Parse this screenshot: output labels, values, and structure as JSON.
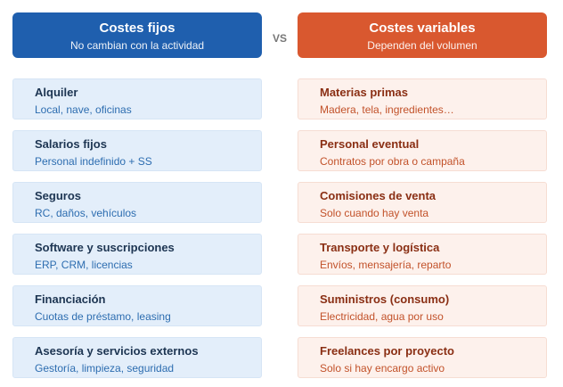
{
  "fixed": {
    "title": "Costes fijos",
    "subtitle": "No cambian con la actividad",
    "items": [
      {
        "title": "Alquiler",
        "detail": "Local, nave, oficinas"
      },
      {
        "title": "Salarios fijos",
        "detail": "Personal indefinido + SS"
      },
      {
        "title": "Seguros",
        "detail": "RC, daños, vehículos"
      },
      {
        "title": "Software y suscripciones",
        "detail": "ERP, CRM, licencias"
      },
      {
        "title": "Financiación",
        "detail": "Cuotas de préstamo, leasing"
      },
      {
        "title": "Asesoría y servicios externos",
        "detail": "Gestoría, limpieza, seguridad"
      }
    ]
  },
  "vs": "VS",
  "variable": {
    "title": "Costes variables",
    "subtitle": "Dependen del volumen",
    "items": [
      {
        "title": "Materias primas",
        "detail": "Madera, tela, ingredientes…"
      },
      {
        "title": "Personal eventual",
        "detail": "Contratos por obra o campaña"
      },
      {
        "title": "Comisiones de venta",
        "detail": "Solo cuando hay venta"
      },
      {
        "title": "Transporte y logística",
        "detail": "Envíos, mensajería, reparto"
      },
      {
        "title": "Suministros (consumo)",
        "detail": "Electricidad, agua por uso"
      },
      {
        "title": "Freelances por proyecto",
        "detail": "Solo si hay encargo activo"
      }
    ]
  }
}
